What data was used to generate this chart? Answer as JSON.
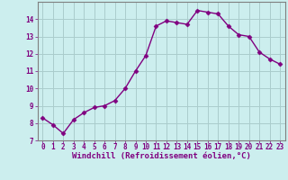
{
  "x": [
    0,
    1,
    2,
    3,
    4,
    5,
    6,
    7,
    8,
    9,
    10,
    11,
    12,
    13,
    14,
    15,
    16,
    17,
    18,
    19,
    20,
    21,
    22,
    23
  ],
  "y": [
    8.3,
    7.9,
    7.4,
    8.2,
    8.6,
    8.9,
    9.0,
    9.3,
    10.0,
    11.0,
    11.9,
    13.6,
    13.9,
    13.8,
    13.7,
    14.5,
    14.4,
    14.3,
    13.6,
    13.1,
    13.0,
    12.1,
    11.7,
    11.4
  ],
  "line_color": "#800080",
  "marker": "D",
  "marker_size": 2.5,
  "bg_color": "#cceeee",
  "grid_color": "#aacccc",
  "xlabel": "Windchill (Refroidissement éolien,°C)",
  "xlabel_color": "#800080",
  "tick_color": "#800080",
  "ylim": [
    7,
    15
  ],
  "xlim": [
    -0.5,
    23.5
  ],
  "yticks": [
    7,
    8,
    9,
    10,
    11,
    12,
    13,
    14
  ],
  "xticks": [
    0,
    1,
    2,
    3,
    4,
    5,
    6,
    7,
    8,
    9,
    10,
    11,
    12,
    13,
    14,
    15,
    16,
    17,
    18,
    19,
    20,
    21,
    22,
    23
  ],
  "spine_color": "#808080",
  "tick_fontsize": 5.5,
  "xlabel_fontsize": 6.5,
  "linewidth": 1.0
}
